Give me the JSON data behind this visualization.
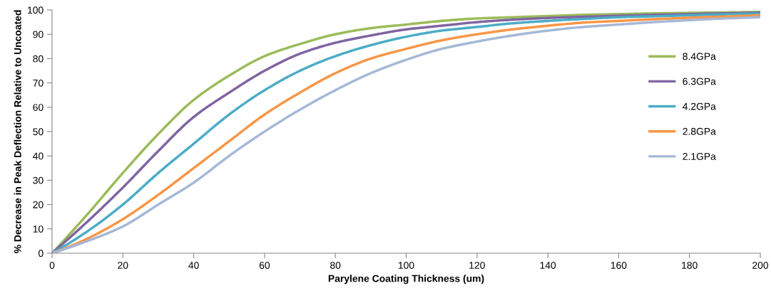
{
  "chart_data": {
    "type": "line",
    "xlabel": "Parylene Coating Thickness (um)",
    "ylabel": "% Decrease in Peak Deflection Relative to Uncoated",
    "x": [
      0,
      10,
      20,
      30,
      40,
      50,
      60,
      70,
      80,
      90,
      100,
      110,
      120,
      130,
      140,
      150,
      160,
      170,
      180,
      190,
      200
    ],
    "series": [
      {
        "name": "8.4GPa",
        "color": "#9bbb59",
        "values": [
          0,
          16,
          33,
          49,
          63,
          73,
          81,
          86,
          90,
          92.5,
          94,
          95.5,
          96.5,
          97,
          97.5,
          98,
          98.3,
          98.6,
          98.8,
          99,
          99.2
        ]
      },
      {
        "name": "6.3GPa",
        "color": "#8064a2",
        "values": [
          0,
          13,
          27,
          42,
          56,
          66,
          75,
          82,
          86.5,
          89.5,
          92,
          93.5,
          95,
          96,
          96.7,
          97.2,
          97.6,
          98,
          98.3,
          98.6,
          98.9
        ]
      },
      {
        "name": "4.2GPa",
        "color": "#4bacc6",
        "values": [
          0,
          9,
          20,
          33,
          45,
          57,
          67,
          75,
          81,
          85.5,
          89,
          91.5,
          93,
          94.5,
          95.5,
          96.3,
          97,
          97.4,
          97.8,
          98.2,
          98.5
        ]
      },
      {
        "name": "2.8GPa",
        "color": "#f79646",
        "values": [
          0,
          6,
          14,
          24,
          35,
          46,
          57,
          66,
          74,
          80,
          84,
          87.5,
          90,
          92,
          93.5,
          94.8,
          95.5,
          96.2,
          96.8,
          97.3,
          97.8
        ]
      },
      {
        "name": "2.1GPa",
        "color": "#a5b8d7",
        "values": [
          0,
          5,
          11,
          20,
          29,
          40,
          50,
          59,
          67,
          74,
          79.5,
          84,
          87,
          89.5,
          91.5,
          93,
          94,
          95,
          95.8,
          96.5,
          97
        ]
      }
    ],
    "xlim": [
      0,
      200
    ],
    "xticks": [
      0,
      20,
      40,
      60,
      80,
      100,
      120,
      140,
      160,
      180,
      200
    ],
    "ylim": [
      0,
      100
    ],
    "yticks": [
      0,
      10,
      20,
      30,
      40,
      50,
      60,
      70,
      80,
      90,
      100
    ],
    "grid": false,
    "legend": "right",
    "marker": "none",
    "line_style": "solid"
  }
}
